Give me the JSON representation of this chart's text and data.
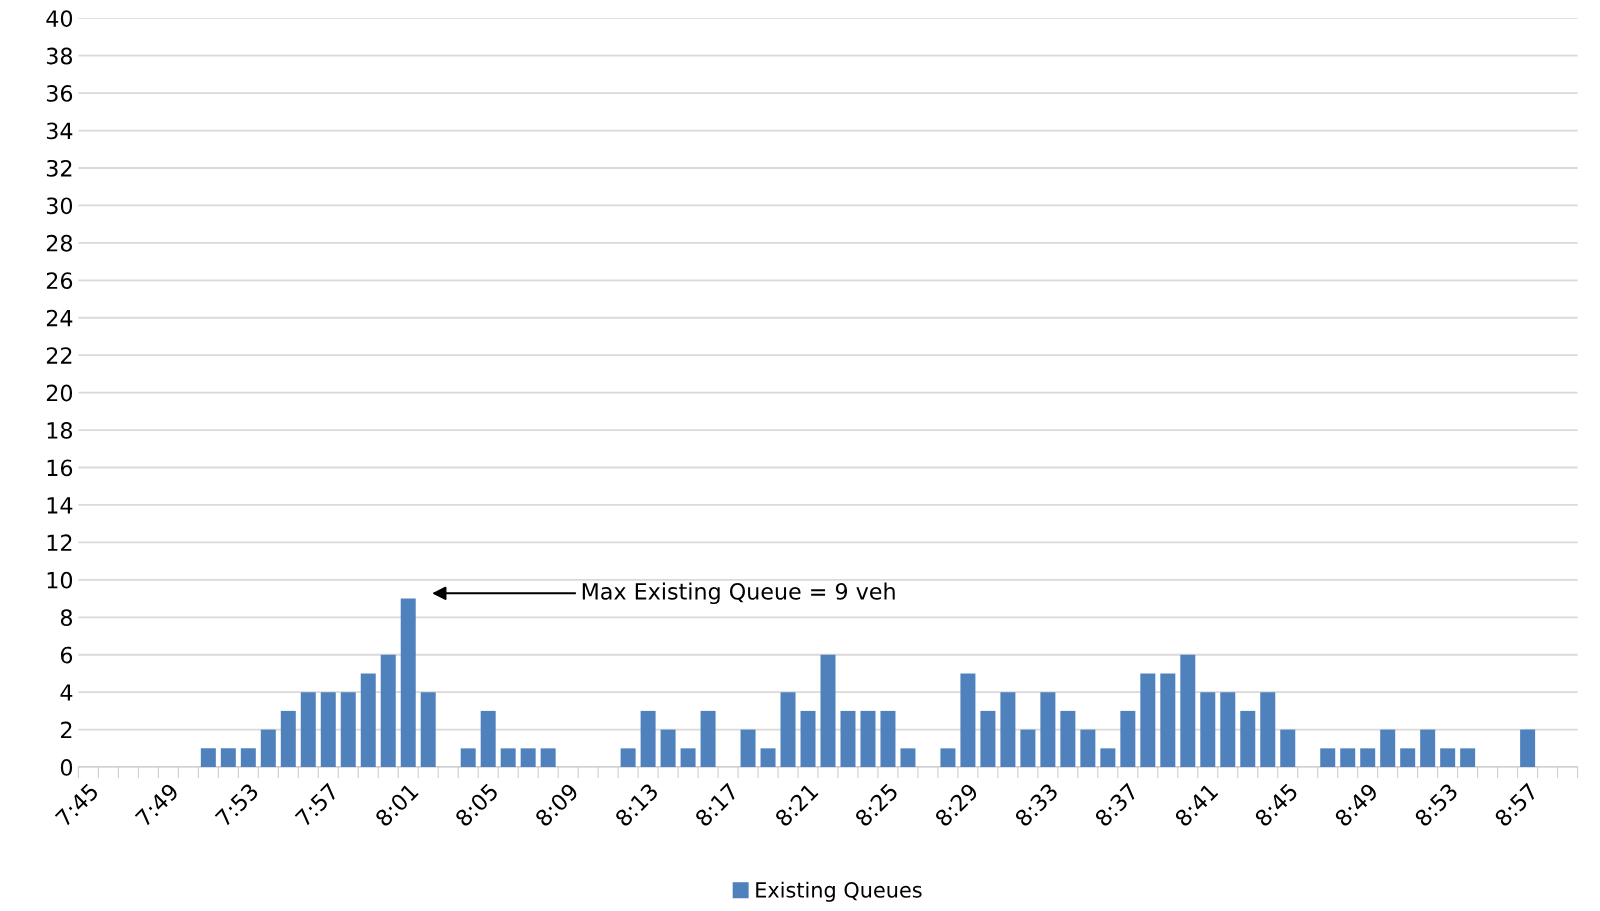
{
  "chart_data": {
    "type": "bar",
    "categories": [
      "7:45",
      null,
      null,
      null,
      "7:49",
      null,
      null,
      null,
      "7:53",
      null,
      null,
      null,
      "7:57",
      null,
      null,
      null,
      "8:01",
      null,
      null,
      null,
      "8:05",
      null,
      null,
      null,
      "8:09",
      null,
      null,
      null,
      "8:13",
      null,
      null,
      null,
      "8:17",
      null,
      null,
      null,
      "8:21",
      null,
      null,
      null,
      "8:25",
      null,
      null,
      null,
      "8:29",
      null,
      null,
      null,
      "8:33",
      null,
      null,
      null,
      "8:37",
      null,
      null,
      null,
      "8:41",
      null,
      null,
      null,
      "8:45",
      null,
      null,
      null,
      "8:49",
      null,
      null,
      null,
      "8:53",
      null,
      null,
      null,
      "8:57",
      null,
      null
    ],
    "series": [
      {
        "name": "Existing Queues",
        "color": "#4f81bd",
        "values": [
          0,
          0,
          0,
          0,
          0,
          0,
          1,
          1,
          1,
          2,
          3,
          4,
          4,
          4,
          5,
          6,
          9,
          4,
          0,
          1,
          3,
          1,
          1,
          1,
          0,
          0,
          0,
          1,
          3,
          2,
          1,
          3,
          0,
          2,
          1,
          4,
          3,
          6,
          3,
          3,
          3,
          1,
          0,
          1,
          5,
          3,
          4,
          2,
          4,
          3,
          2,
          1,
          3,
          5,
          5,
          6,
          4,
          4,
          3,
          4,
          2,
          0,
          1,
          1,
          1,
          2,
          1,
          2,
          1,
          1,
          0,
          0,
          2,
          0,
          0
        ]
      }
    ],
    "ylim": [
      0,
      40
    ],
    "yticks": [
      0,
      2,
      4,
      6,
      8,
      10,
      12,
      14,
      16,
      18,
      20,
      22,
      24,
      26,
      28,
      30,
      32,
      34,
      36,
      38,
      40
    ],
    "grid": "y",
    "legend": "bottom",
    "annotations": [
      "Max Existing Queue = 9 veh"
    ]
  }
}
